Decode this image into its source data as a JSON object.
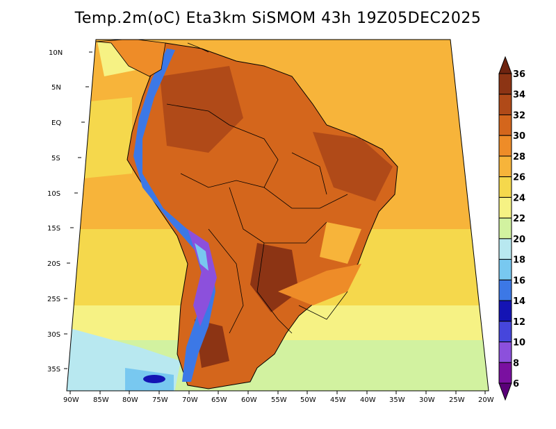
{
  "title": "Temp.2m(oC) Eta3km SiSMOM 43h 19Z05DEC2025",
  "latitude_ticks": [
    "10N",
    "5N",
    "EQ",
    "5S",
    "10S",
    "15S",
    "20S",
    "25S",
    "30S",
    "35S"
  ],
  "longitude_ticks": [
    "90W",
    "85W",
    "80W",
    "75W",
    "70W",
    "65W",
    "60W",
    "55W",
    "50W",
    "45W",
    "40W",
    "35W",
    "30W",
    "25W",
    "20W"
  ],
  "colorbar": {
    "labels": [
      "36",
      "34",
      "32",
      "30",
      "28",
      "26",
      "24",
      "22",
      "20",
      "18",
      "16",
      "14",
      "12",
      "10",
      "8",
      "6"
    ],
    "colors": [
      "#6e2410",
      "#8c3414",
      "#b04a18",
      "#d4661c",
      "#ee8c28",
      "#f7b43a",
      "#f5d84c",
      "#f6f284",
      "#d2f2a0",
      "#b8e8f0",
      "#78c8f0",
      "#3c78e6",
      "#1414b4",
      "#4646dc",
      "#8c50dc",
      "#7a10a0",
      "#5a0078"
    ]
  },
  "colors": {
    "ocean_warm": "#f7b43a",
    "ocean_mid": "#f5d84c",
    "ocean_cool": "#d2f2a0",
    "land_hot": "#d4661c",
    "land_hotter": "#b04a18",
    "andes_cold": "#3c78e6"
  }
}
